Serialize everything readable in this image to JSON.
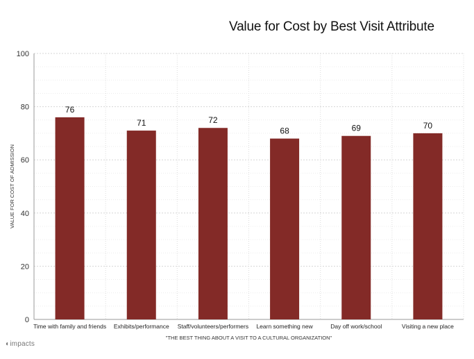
{
  "chart_data": {
    "type": "bar",
    "title": "Value for Cost by Best Visit Attribute",
    "xlabel": "\"THE BEST THING ABOUT A VISIT TO A CULTURAL ORGANIZATION\"",
    "ylabel": "VALUE FOR COST OF ADMISSION",
    "categories": [
      "Time with family and friends",
      "Exhibits/performance",
      "Staff/volunteers/performers",
      "Learn something new",
      "Day off work/school",
      "Visiting a new place"
    ],
    "values": [
      76,
      71,
      72,
      68,
      69,
      70
    ],
    "ylim": [
      0,
      100
    ],
    "yticks": [
      0,
      20,
      40,
      60,
      80,
      100
    ],
    "grid": true,
    "bar_color": "#832a27"
  },
  "footer": {
    "logo_text": "impacts"
  }
}
